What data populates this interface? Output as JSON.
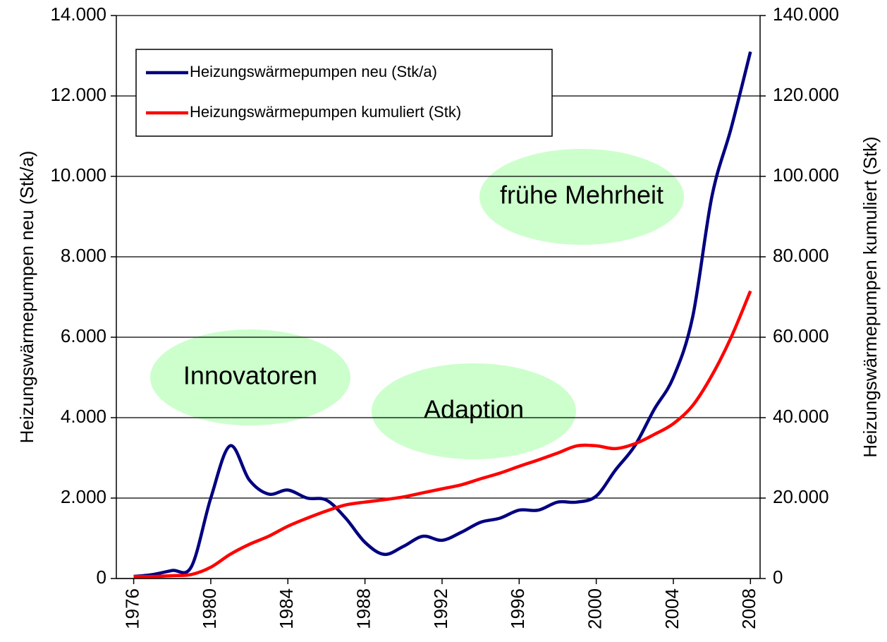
{
  "chart_data": {
    "type": "line",
    "x": [
      1976,
      1977,
      1978,
      1979,
      1980,
      1981,
      1982,
      1983,
      1984,
      1985,
      1986,
      1987,
      1988,
      1989,
      1990,
      1991,
      1992,
      1993,
      1994,
      1995,
      1996,
      1997,
      1998,
      1999,
      2000,
      2001,
      2002,
      2003,
      2004,
      2005,
      2006,
      2007,
      2008
    ],
    "series": [
      {
        "name": "Heizungswärmepumpen neu (Stk/a)",
        "color": "#000080",
        "axis": "y",
        "values": [
          50,
          100,
          200,
          300,
          2000,
          3300,
          2450,
          2100,
          2200,
          2000,
          1950,
          1500,
          900,
          600,
          800,
          1050,
          950,
          1150,
          1400,
          1500,
          1700,
          1700,
          1900,
          1900,
          2050,
          2700,
          3300,
          4200,
          5000,
          6500,
          9500,
          11200,
          13100
        ]
      },
      {
        "name": "Heizungswärmepumpen kumuliert (Stk)",
        "color": "#ff0000",
        "axis": "y2",
        "values": [
          500,
          500,
          700,
          1000,
          2800,
          6000,
          8500,
          10500,
          13000,
          15000,
          16800,
          18300,
          19000,
          19600,
          20300,
          21300,
          22300,
          23300,
          24800,
          26200,
          27900,
          29500,
          31200,
          33000,
          33000,
          32300,
          33500,
          35800,
          38500,
          43000,
          50500,
          60000,
          71500
        ]
      }
    ],
    "xlim": [
      1975.1,
      2008.5
    ],
    "xticks": [
      1976,
      1980,
      1984,
      1988,
      1992,
      1996,
      2000,
      2004,
      2008
    ],
    "ylim": [
      0,
      14000
    ],
    "yticks": [
      0,
      {
        "value": 2000,
        "label": "2.000"
      },
      {
        "value": 4000,
        "label": "4.000"
      },
      {
        "value": 6000,
        "label": "6.000"
      },
      {
        "value": 8000,
        "label": "8.000"
      },
      {
        "value": 10000,
        "label": "10.000"
      },
      {
        "value": 12000,
        "label": "12.000"
      },
      {
        "value": 14000,
        "label": "14.000"
      }
    ],
    "y2lim": [
      0,
      140000
    ],
    "y2ticks": [
      0,
      {
        "value": 20000,
        "label": "20.000"
      },
      {
        "value": 40000,
        "label": "40.000"
      },
      {
        "value": 60000,
        "label": "60.000"
      },
      {
        "value": 80000,
        "label": "80.000"
      },
      {
        "value": 100000,
        "label": "100.000"
      },
      {
        "value": 120000,
        "label": "120.000"
      },
      {
        "value": 140000,
        "label": "140.000"
      }
    ],
    "ylabel": "Heizungswärmepumpen neu (Stk/a)",
    "y2label": "Heizungswärmepumpen kumuliert (Stk)",
    "annotations": [
      "Innovatoren",
      "Adaption",
      "frühe Mehrheit"
    ],
    "grid": true,
    "legend": "upper left"
  }
}
